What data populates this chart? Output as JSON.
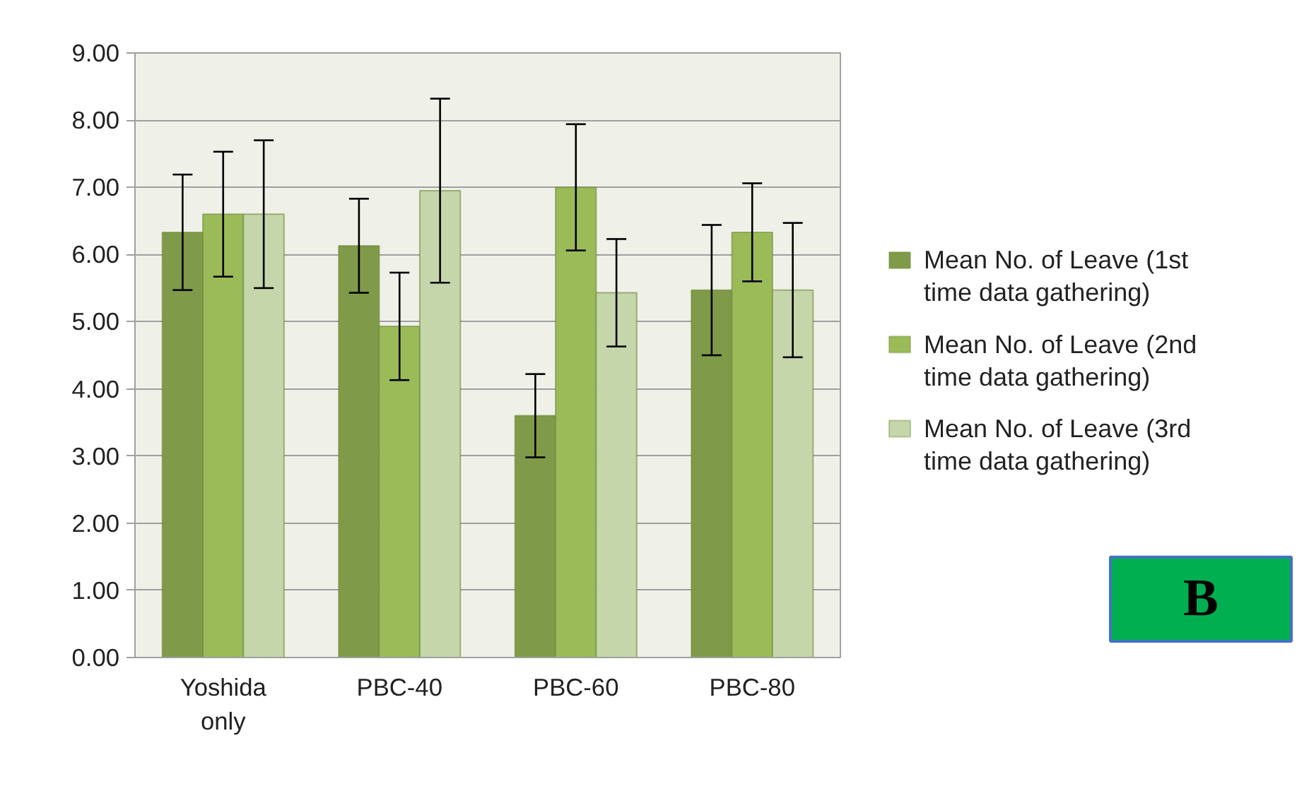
{
  "chart_data": {
    "type": "bar",
    "categories": [
      "Yoshida only",
      "PBC-40",
      "PBC-60",
      "PBC-80"
    ],
    "series": [
      {
        "name": "Mean No. of Leave (1st time data gathering)",
        "color": "#7f9a48",
        "values": [
          6.33,
          6.13,
          3.6,
          5.47
        ],
        "errors": [
          0.86,
          0.7,
          0.62,
          0.97
        ]
      },
      {
        "name": "Mean No. of Leave (2nd time data gathering)",
        "color": "#9bbb59",
        "values": [
          6.6,
          4.93,
          7.0,
          6.33
        ],
        "errors": [
          0.93,
          0.8,
          0.94,
          0.73
        ]
      },
      {
        "name": "Mean No. of Leave (3rd time data gathering)",
        "color": "#c6d6ab",
        "values": [
          6.6,
          6.95,
          5.43,
          5.47
        ],
        "errors": [
          1.1,
          1.37,
          0.8,
          1.0
        ]
      }
    ],
    "ylim": [
      0,
      9
    ],
    "yticks": [
      {
        "value": 0,
        "label": "0.00"
      },
      {
        "value": 1,
        "label": "1.00"
      },
      {
        "value": 2,
        "label": "2.00"
      },
      {
        "value": 3,
        "label": "3.00"
      },
      {
        "value": 4,
        "label": "4.00"
      },
      {
        "value": 5,
        "label": "5.00"
      },
      {
        "value": 6,
        "label": "6.00"
      },
      {
        "value": 7,
        "label": "7.00"
      },
      {
        "value": 8,
        "label": "8.00"
      },
      {
        "value": 9,
        "label": "9.00"
      }
    ],
    "grid": "y",
    "legend": "right",
    "annotations": [
      "B"
    ]
  }
}
